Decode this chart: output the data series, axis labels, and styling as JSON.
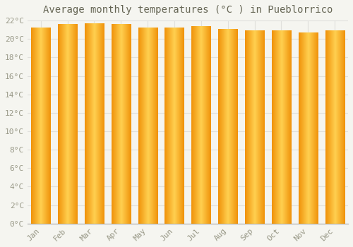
{
  "title": "Average monthly temperatures (°C ) in Pueblorrico",
  "months": [
    "Jan",
    "Feb",
    "Mar",
    "Apr",
    "May",
    "Jun",
    "Jul",
    "Aug",
    "Sep",
    "Oct",
    "Nov",
    "Dec"
  ],
  "values": [
    21.2,
    21.6,
    21.7,
    21.6,
    21.2,
    21.2,
    21.4,
    21.1,
    20.9,
    20.9,
    20.7,
    20.9
  ],
  "bar_color_center": "#FFD050",
  "bar_color_edge": "#F0920A",
  "background_color": "#F5F5F0",
  "grid_color": "#E0E0DC",
  "text_color": "#999988",
  "ylim": [
    0,
    22
  ],
  "yticks": [
    0,
    2,
    4,
    6,
    8,
    10,
    12,
    14,
    16,
    18,
    20,
    22
  ],
  "title_fontsize": 10,
  "tick_fontsize": 8
}
